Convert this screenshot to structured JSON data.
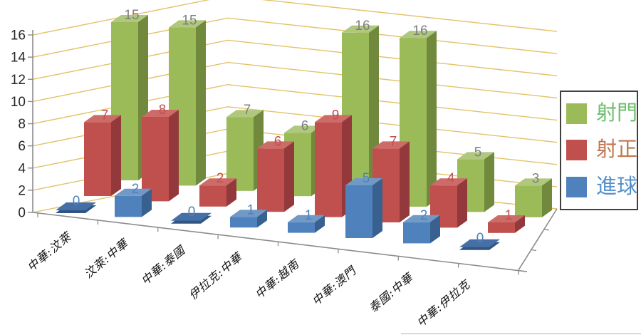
{
  "background": "#FFFFFF",
  "chart_data": {
    "type": "bar",
    "variant": "3d-clustered-column",
    "title": "",
    "xlabel": "",
    "ylabel": "",
    "categories": [
      "中華:汶萊",
      "汶萊:中華",
      "中華:泰國",
      "伊拉克:中華",
      "中華:越南",
      "中華:澳門",
      "泰國:中華",
      "中華:伊拉克"
    ],
    "series": [
      {
        "name": "射門",
        "values": [
          15,
          15,
          7,
          6,
          16,
          16,
          5,
          3
        ],
        "color": "#9BBB59",
        "top_color": "#AFC87E",
        "side_color": "#71893C",
        "label_color": "#7F7F7F"
      },
      {
        "name": "射正",
        "values": [
          7,
          8,
          2,
          6,
          9,
          7,
          4,
          1
        ],
        "color": "#C0504D",
        "top_color": "#CD6B68",
        "side_color": "#94393B",
        "label_color": "#C0504D"
      },
      {
        "name": "進球",
        "values": [
          0,
          2,
          0,
          1,
          1,
          5,
          2,
          0
        ],
        "color": "#4F81BD",
        "top_color": "#7199C6",
        "side_color": "#38618F",
        "label_color": "#4F81BD",
        "zero_tile_color": "#466FA5",
        "zero_tile_edge": "#2F5584"
      }
    ],
    "y_axis": {
      "min": 0,
      "max": 16,
      "step": 2,
      "tick_labels": [
        "0",
        "2",
        "4",
        "6",
        "8",
        "10",
        "12",
        "14",
        "16"
      ]
    },
    "grid": true,
    "gridline_color": "#E2C268",
    "axis_line_color": "#8C8C8C",
    "axis_text_color": "#262626",
    "category_text_color": "#111111",
    "legend": {
      "position": "right",
      "border_color": "#404040",
      "bg": "#FFFFFF",
      "text_colors": [
        "#6CBF6C",
        "#C0764F",
        "#5590CB"
      ]
    }
  }
}
